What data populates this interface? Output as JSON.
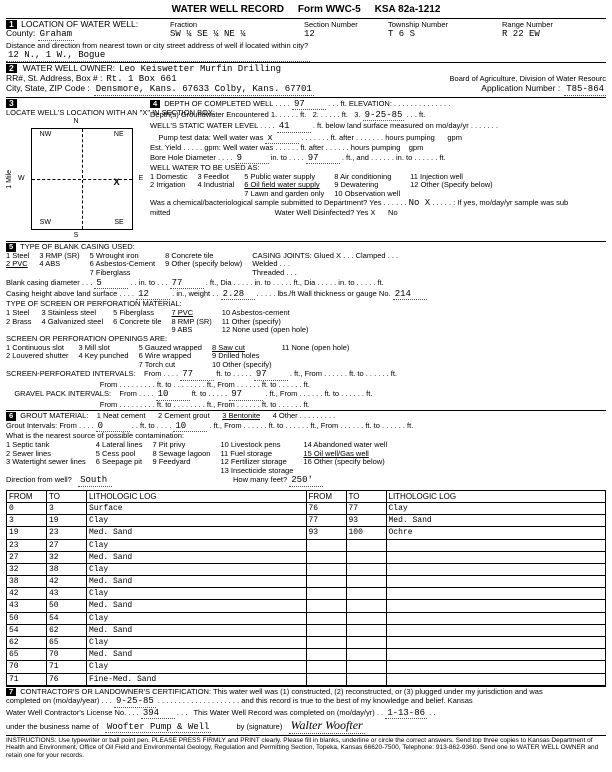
{
  "header": {
    "title": "WATER WELL RECORD",
    "form": "Form WWC-5",
    "ksa": "KSA 82a-1212"
  },
  "s1": {
    "title": "LOCATION OF WATER WELL:",
    "county_lbl": "County:",
    "county": "Graham",
    "fraction_lbl": "Fraction",
    "fr": "SW  ¼    SE   ¼    NE  ¼",
    "section_lbl": "Section Number",
    "section": "12",
    "township_lbl": "Township Number",
    "township": "T   6    S",
    "range_lbl": "Range Number",
    "range": "R     22   EW",
    "dist_lbl": "Distance and direction from nearest town or city street address of well if located within city?",
    "dist": "12 N., 1 W., Bogue"
  },
  "s2": {
    "title": "WATER WELL OWNER:",
    "owner": "Leo Keiswetter       Murfin Drilling",
    "addr_lbl": "RR#, St. Address, Box # :",
    "addr": "Rt. 1                  Box 661",
    "csz_lbl": "City, State, ZIP Code :",
    "csz": "Densmore, Kans. 67633  Colby, Kans. 67701",
    "board": "Board of Agriculture, Division of Water Resourc",
    "app_lbl": "Application Number :",
    "app": "T85-864"
  },
  "s3": {
    "title": "LOCATE WELL'S LOCATION WITH AN \"X\" IN SECTION BOX:",
    "n": "N",
    "s": "S",
    "w": "W",
    "e": "E",
    "nw": "NW",
    "ne": "NE",
    "sw": "SW",
    "se": "SE",
    "mile": "1 Mile"
  },
  "s4": {
    "title": "DEPTH OF COMPLETED WELL",
    "depth": "97",
    "elev_lbl": "ft. ELEVATION:",
    "gw_lbl": "Depth(s) Groundwater Encountered   1.",
    "gw1": "",
    "gw2": "2.",
    "gw3": "3.",
    "date": "9-25-85",
    "static_lbl": "WELL'S STATIC WATER LEVEL",
    "static": "41",
    "static_tail": "ft. below land surface measured on mo/day/yr",
    "pump_lbl": "Pump test data:  Well water was",
    "pump1": "x",
    "after": "ft. after",
    "hours": "hours pumping",
    "gpm": "gpm",
    "est_lbl": "Est. Yield",
    "est_gpm": "gpm:  Well water was",
    "bore_lbl": "Bore Hole Diameter",
    "bore_d": "9",
    "bore_to": "97",
    "in_to": "in. to",
    "use_lbl": "WELL WATER TO BE USED AS:",
    "uses": [
      "1 Domestic",
      "2 Irrigation",
      "3 Feedlot",
      "4 Industrial",
      "5 Public water supply",
      "6 Oil field water supply",
      "7 Lawn and garden only",
      "8 Air conditioning",
      "9 Dewatering",
      "10 Observation well",
      "11 Injection well",
      "12 Other (Specify below)"
    ],
    "chem_lbl": "Was a chemical/bacteriological sample submitted to Department? Yes",
    "chem_no": "No X",
    "chem_tail": ": If yes, mo/day/yr sample was sub",
    "mitted": "mitted",
    "dis_lbl": "Water Well Disinfected?  Yes X",
    "dis_no": "No"
  },
  "s5": {
    "title": "TYPE OF BLANK CASING USED:",
    "opts": [
      "1 Steel",
      "2 PVC",
      "3 RMP (SR)",
      "4 ABS",
      "5 Wrought iron",
      "6 Asbestos-Cement",
      "7 Fiberglass",
      "8 Concrete tile",
      "9 Other (specify below)"
    ],
    "joints_lbl": "CASING JOINTS: Glued X . . . Clamped . . .",
    "welded": "Welded . . .",
    "threaded": "Threaded . . .",
    "bcd_lbl": "Blank casing diameter",
    "bcd": "5",
    "bcd_to": "77",
    "bcd_dia": "Dia",
    "chals_lbl": "Casing height above land surface",
    "chals": "12",
    "wt_lbl": "in., weight",
    "wt": "2.28",
    "lbsft": "lbs./ft  Wall thickness or gauge No.",
    "gauge": "214",
    "screen_lbl": "TYPE OF SCREEN OR PERFORATION MATERIAL:",
    "screen_opts": [
      "1 Steel",
      "2 Brass",
      "3 Stainless steel",
      "4 Galvanized steel",
      "5 Fiberglass",
      "6 Concrete tile",
      "7 PVC",
      "8 RMP (SR)",
      "9 ABS",
      "10 Asbestos-cement",
      "11 Other (specify)",
      "12 None used (open hole)"
    ],
    "open_lbl": "SCREEN OR PERFORATION OPENINGS ARE:",
    "open_opts": [
      "1 Continuous slot",
      "2 Louvered shutter",
      "3 Mill slot",
      "4 Key punched",
      "5 Gauzed wrapped",
      "6 Wire wrapped",
      "7 Torch cut",
      "8 Saw cut",
      "9 Drilled holes",
      "10 Other (specify)",
      "11 None (open hole)"
    ],
    "spi_lbl": "SCREEN-PERFORATED INTERVALS:",
    "from": "From",
    "to": "ft. to",
    "spi_f": "77",
    "spi_t": "97",
    "gpi_lbl": "GRAVEL PACK INTERVALS:",
    "gpi_f": "10",
    "gpi_t": "97"
  },
  "s6": {
    "title": "GROUT MATERIAL:",
    "opts": [
      "1 Neat cement",
      "2 Cement grout",
      "3 Bentonite",
      "4 Other"
    ],
    "gi_lbl": "Grout Intervals:    From",
    "gi_f": "0",
    "gi_to": "ft. to",
    "gi_t": "10",
    "gi_tail": "ft., From",
    "gi_tail2": "ft. to",
    "gi_tail3": "ft.",
    "src_lbl": "What is the nearest source of possible contamination:",
    "src_opts": [
      "1 Septic tank",
      "2 Sewer lines",
      "3 Watertight sewer lines",
      "4 Lateral lines",
      "5 Cess pool",
      "6 Seepage pit",
      "7 Pit privy",
      "8 Sewage lagoon",
      "9 Feedyard",
      "10 Livestock pens",
      "11 Fuel storage",
      "12 Fertilizer storage",
      "13 Insecticide storage",
      "14 Abandoned water well",
      "15 Oil well/Gas well",
      "16 Other (specify below)"
    ],
    "dir_lbl": "Direction from well?",
    "dir": "South",
    "feet_lbl": "How many feet?",
    "feet": "250'"
  },
  "log": {
    "hdr": [
      "FROM",
      "TO",
      "LITHOLOGIC LOG",
      "FROM",
      "TO",
      "LITHOLOGIC LOG"
    ],
    "rows": [
      [
        "0",
        "3",
        "Surface",
        "76",
        "77",
        "Clay"
      ],
      [
        "3",
        "19",
        "Clay",
        "77",
        "93",
        "Med. Sand"
      ],
      [
        "19",
        "23",
        "Med. Sand",
        "93",
        "100",
        "Ochre"
      ],
      [
        "23",
        "27",
        "Clay",
        "",
        "",
        ""
      ],
      [
        "27",
        "32",
        "Med. Sand",
        "",
        "",
        ""
      ],
      [
        "32",
        "38",
        "Clay",
        "",
        "",
        ""
      ],
      [
        "38",
        "42",
        "Med. Sand",
        "",
        "",
        ""
      ],
      [
        "42",
        "43",
        "Clay",
        "",
        "",
        ""
      ],
      [
        "43",
        "50",
        "Med. Sand",
        "",
        "",
        ""
      ],
      [
        "50",
        "54",
        "Clay",
        "",
        "",
        ""
      ],
      [
        "54",
        "62",
        "Med. Sand",
        "",
        "",
        ""
      ],
      [
        "62",
        "65",
        "Clay",
        "",
        "",
        ""
      ],
      [
        "65",
        "70",
        "Med. Sand",
        "",
        "",
        ""
      ],
      [
        "70",
        "71",
        "Clay",
        "",
        "",
        ""
      ],
      [
        "71",
        "76",
        "Fine-Med. Sand",
        "",
        "",
        ""
      ]
    ]
  },
  "s7": {
    "title": "CONTRACTOR'S OR LANDOWNER'S CERTIFICATION: This water well was (1) constructed, (2) reconstructed, or (3) plugged under my jurisdiction and was",
    "comp_lbl": "completed on (mo/day/year)",
    "comp": "9-25-85",
    "tail": "and this record is true to the best of my knowledge and belief. Kansas",
    "lic_lbl": "Water Well Contractor's License No.",
    "lic": "394",
    "rec_lbl": "This Water Well Record was completed on (mo/day/yr)",
    "rec": "1-13-86",
    "bus_lbl": "under the business name of",
    "bus": "Woofter Pump & Well",
    "sig_lbl": "by (signature)",
    "sig": "Walter Woofter"
  },
  "instr": "INSTRUCTIONS: Use typewriter or ball point pen. PLEASE PRESS FIRMLY and PRINT clearly. Please fill in blanks, underline or circle the correct answers. Send top three copies to Kansas Department of Health and Environment, Office of Oil Field and Environmental Geology, Regulation and Permitting Section, Topeka, Kansas 66620-7500, Telephone: 913-862-9360. Send one to WATER WELL OWNER and retain one for your records."
}
